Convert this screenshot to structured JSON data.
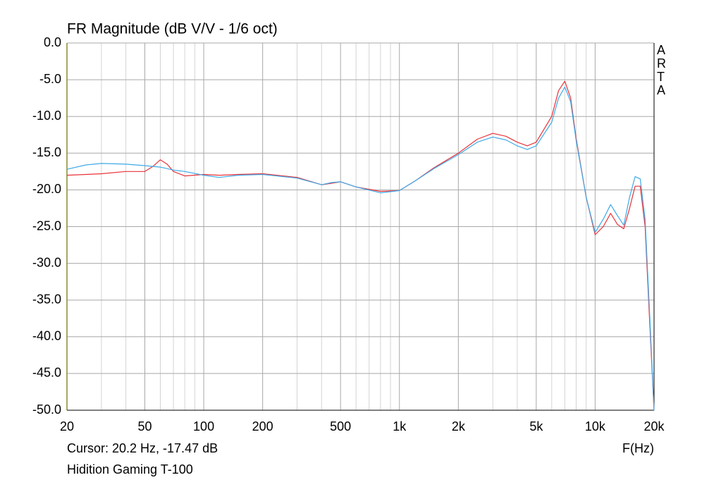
{
  "chart_data": {
    "type": "line",
    "title": "FR Magnitude (dB V/V - 1/6 oct)",
    "x_label": "F(Hz)",
    "cursor": "Cursor: 20.2 Hz, -17.47 dB",
    "device": "Hidition Gaming T-100",
    "brand": "ARTA",
    "xscale": "log",
    "grid": true,
    "xlim": [
      20,
      20000
    ],
    "ylim": [
      -50,
      0
    ],
    "xticks": [
      20,
      50,
      100,
      200,
      500,
      {
        "value": 1000,
        "label": "1k"
      },
      {
        "value": 2000,
        "label": "2k"
      },
      {
        "value": 5000,
        "label": "5k"
      },
      {
        "value": 10000,
        "label": "10k"
      },
      {
        "value": 20000,
        "label": "20k"
      }
    ],
    "xminor": [
      30,
      40,
      60,
      70,
      80,
      90,
      300,
      400,
      600,
      700,
      800,
      900,
      3000,
      4000,
      6000,
      7000,
      8000,
      9000
    ],
    "yticks": [
      {
        "value": 0,
        "label": "0.0"
      },
      {
        "value": -5,
        "label": "-5.0"
      },
      {
        "value": -10,
        "label": "-10.0"
      },
      {
        "value": -15,
        "label": "-15.0"
      },
      {
        "value": -20,
        "label": "-20.0"
      },
      {
        "value": -25,
        "label": "-25.0"
      },
      {
        "value": -30,
        "label": "-30.0"
      },
      {
        "value": -35,
        "label": "-35.0"
      },
      {
        "value": -40,
        "label": "-40.0"
      },
      {
        "value": -45,
        "label": "-45.0"
      },
      {
        "value": -50,
        "label": "-50.0"
      }
    ],
    "x": [
      20,
      25,
      30,
      40,
      50,
      55,
      60,
      65,
      70,
      80,
      100,
      120,
      150,
      200,
      300,
      400,
      450,
      500,
      600,
      800,
      1000,
      1200,
      1500,
      2000,
      2500,
      3000,
      3500,
      4000,
      4500,
      5000,
      6000,
      6500,
      7000,
      7500,
      8000,
      9000,
      10000,
      11000,
      12000,
      13000,
      14000,
      15000,
      16000,
      17000,
      18000,
      19000,
      20000
    ],
    "series": [
      {
        "color": "#e8333a",
        "values": [
          -18.0,
          -17.9,
          -17.8,
          -17.5,
          -17.5,
          -16.8,
          -15.9,
          -16.5,
          -17.5,
          -18.1,
          -17.9,
          -18.0,
          -17.9,
          -17.8,
          -18.3,
          -19.3,
          -19.1,
          -18.9,
          -19.6,
          -20.2,
          -20.1,
          -18.8,
          -17.0,
          -15.0,
          -13.1,
          -12.3,
          -12.7,
          -13.5,
          -14.0,
          -13.5,
          -10.0,
          -6.5,
          -5.2,
          -7.5,
          -13.0,
          -21.0,
          -26.1,
          -25.0,
          -23.2,
          -24.7,
          -25.3,
          -22.5,
          -19.5,
          -19.5,
          -25.0,
          -38.0,
          -50.0
        ]
      },
      {
        "color": "#3fa9e8",
        "values": [
          -17.2,
          -16.6,
          -16.4,
          -16.5,
          -16.7,
          -16.8,
          -16.9,
          -17.1,
          -17.3,
          -17.5,
          -18.0,
          -18.3,
          -18.0,
          -17.9,
          -18.4,
          -19.3,
          -19.0,
          -18.9,
          -19.6,
          -20.4,
          -20.1,
          -18.8,
          -17.1,
          -15.2,
          -13.5,
          -12.8,
          -13.2,
          -14.0,
          -14.5,
          -14.0,
          -10.8,
          -7.5,
          -6.0,
          -8.0,
          -13.3,
          -21.0,
          -25.8,
          -24.0,
          -22.0,
          -23.5,
          -24.8,
          -21.0,
          -18.2,
          -18.5,
          -24.0,
          -37.0,
          -50.0
        ]
      }
    ]
  }
}
